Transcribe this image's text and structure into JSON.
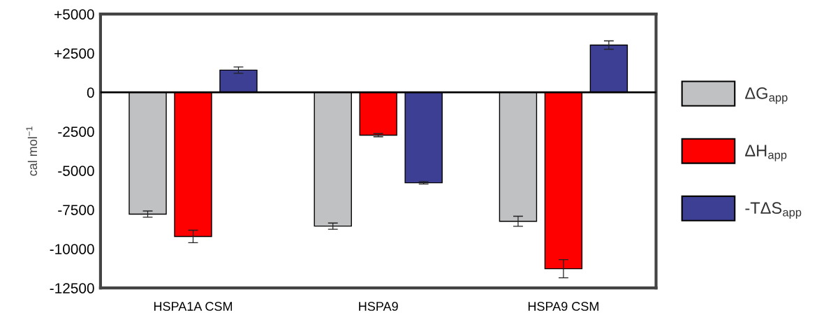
{
  "chart_data": {
    "type": "bar",
    "ylabel": "cal mol$^{−1}$",
    "categories": [
      "HSPA1A CSM",
      "HSPA9",
      "HSPA9 CSM"
    ],
    "series": [
      {
        "name": "ΔG$_{app}$",
        "color": "#c0c1c3",
        "values": [
          -7780,
          -8550,
          -8240
        ],
        "errors": [
          200,
          200,
          320
        ]
      },
      {
        "name": "ΔH$_{app}$",
        "color": "#ff0000",
        "values": [
          -9210,
          -2740,
          -11270
        ],
        "errors": [
          400,
          100,
          580
        ]
      },
      {
        "name": "-TΔS$_{app}$",
        "color": "#3c3f93",
        "values": [
          1420,
          -5780,
          3020
        ],
        "errors": [
          200,
          80,
          270
        ]
      }
    ],
    "ylim": [
      -12500,
      5000
    ],
    "yticks": [
      {
        "value": 5000,
        "label": "+5000"
      },
      {
        "value": 2500,
        "label": "+2500"
      },
      0,
      -2500,
      -5000,
      -7500,
      -10000,
      -12500
    ],
    "ref_lines": [
      {
        "axis": "y",
        "value": 0,
        "color": "#000000"
      }
    ],
    "grid": false,
    "legend": "right"
  }
}
